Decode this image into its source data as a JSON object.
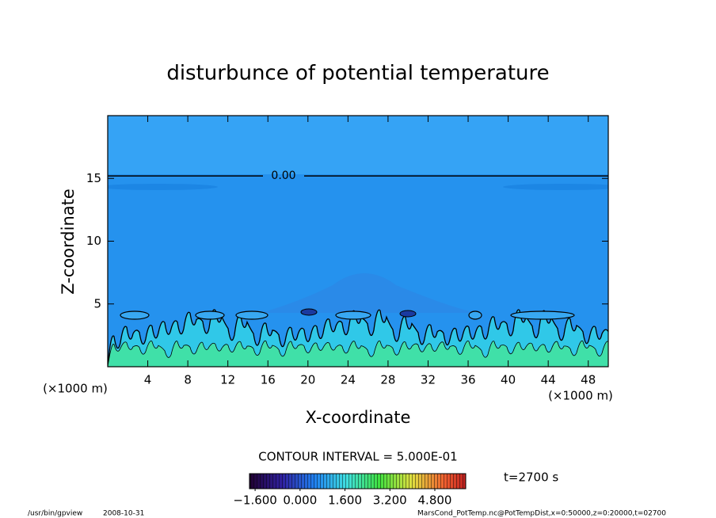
{
  "chart_data": {
    "type": "contour",
    "title": "disturbunce of potential temperature",
    "x_label": "X-coordinate",
    "y_label": "Z-coordinate",
    "x_unit": "(×1000 m)",
    "y_unit": "(×1000 m)",
    "xlim": [
      0,
      50
    ],
    "ylim": [
      0,
      20
    ],
    "xticks": [
      4,
      8,
      12,
      16,
      20,
      24,
      28,
      32,
      36,
      40,
      44,
      48
    ],
    "yticks": [
      5,
      10,
      15
    ],
    "zero_contour": {
      "z": 15.2,
      "label": {
        "value": 0,
        "label": "0.00"
      }
    },
    "contour_interval": "CONTOUR INTERVAL = 5.000E-01",
    "clim": [
      -1.8,
      5.9
    ],
    "cticks": [
      {
        "value": -1.6,
        "label": "−1.600"
      },
      {
        "value": 0,
        "label": "0.000"
      },
      {
        "value": 1.6,
        "label": "1.600"
      },
      {
        "value": 3.2,
        "label": "3.200"
      },
      {
        "value": 4.8,
        "label": "4.800"
      }
    ],
    "time": "t=2700 s",
    "footer_left": "/usr/bin/gpview",
    "footer_date": "2008-10-31",
    "footer_right": "MarsCond_PotTemp.nc@PotTempDist,x=0:50000,z=0:20000,t=02700"
  }
}
